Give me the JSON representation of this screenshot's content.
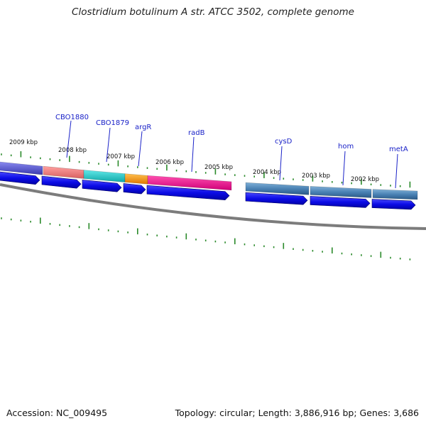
{
  "title": "Clostridium botulinum A str. ATCC 3502, complete genome",
  "footer": {
    "accession": "Accession: NC_009495",
    "stats": "Topology: circular; Length: 3,886,916 bp; Genes: 3,686"
  },
  "scale_labels": [
    "2009 kbp",
    "2008 kbp",
    "2007 kbp",
    "2006 kbp",
    "2005 kbp",
    "2004 kbp",
    "2003 kbp",
    "2002 kbp"
  ],
  "gene_labels": [
    "CBO1880",
    "CBO1879",
    "argR",
    "radB",
    "cysD",
    "hom",
    "metA"
  ],
  "colors": {
    "label_blue": "#1a22c8",
    "cds_blue": "#1010e0",
    "tick_green": "#2a8a2a",
    "backbone": "#808080",
    "feature_purple": "#5555cc",
    "feature_salmon": "#f08080",
    "feature_cyan": "#20c8c8",
    "feature_orange": "#ff9a10",
    "feature_pink": "#f01890",
    "feature_steel": "#4a82b4"
  }
}
